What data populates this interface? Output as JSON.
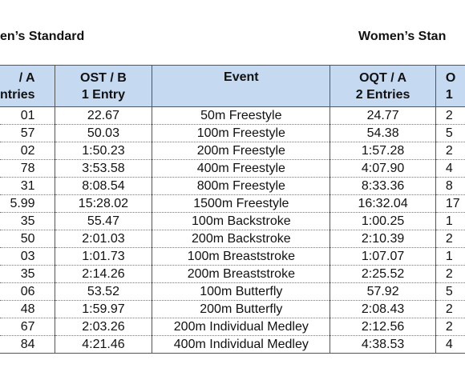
{
  "headings": {
    "left": "en’s Standard",
    "right": "Women’s Stan"
  },
  "columns": [
    {
      "line1": "/ A",
      "line2": "ntries"
    },
    {
      "line1": "OST / B",
      "line2": "1 Entry"
    },
    {
      "line1": "Event",
      "line2": ""
    },
    {
      "line1": "OQT / A",
      "line2": "2 Entries"
    },
    {
      "line1": "O",
      "line2": "1"
    }
  ],
  "rows": [
    {
      "a": "01",
      "b": "22.67",
      "event": "50m Freestyle",
      "c": "24.77",
      "d": "2"
    },
    {
      "a": "57",
      "b": "50.03",
      "event": "100m Freestyle",
      "c": "54.38",
      "d": "5"
    },
    {
      "a": "02",
      "b": "1:50.23",
      "event": "200m Freestyle",
      "c": "1:57.28",
      "d": "2"
    },
    {
      "a": "78",
      "b": "3:53.58",
      "event": "400m Freestyle",
      "c": "4:07.90",
      "d": "4"
    },
    {
      "a": "31",
      "b": "8:08.54",
      "event": "800m Freestyle",
      "c": "8:33.36",
      "d": "8"
    },
    {
      "a": "5.99",
      "b": "15:28.02",
      "event": "1500m Freestyle",
      "c": "16:32.04",
      "d": "17"
    },
    {
      "a": "35",
      "b": "55.47",
      "event": "100m Backstroke",
      "c": "1:00.25",
      "d": "1"
    },
    {
      "a": "50",
      "b": "2:01.03",
      "event": "200m Backstroke",
      "c": "2:10.39",
      "d": "2"
    },
    {
      "a": "03",
      "b": "1:01.73",
      "event": "100m Breaststroke",
      "c": "1:07.07",
      "d": "1"
    },
    {
      "a": "35",
      "b": "2:14.26",
      "event": "200m Breaststroke",
      "c": "2:25.52",
      "d": "2"
    },
    {
      "a": "06",
      "b": "53.52",
      "event": "100m Butterfly",
      "c": "57.92",
      "d": "5"
    },
    {
      "a": "48",
      "b": "1:59.97",
      "event": "200m Butterfly",
      "c": "2:08.43",
      "d": "2"
    },
    {
      "a": "67",
      "b": "2:03.26",
      "event": "200m Individual Medley",
      "c": "2:12.56",
      "d": "2"
    },
    {
      "a": "84",
      "b": "4:21.46",
      "event": "400m Individual Medley",
      "c": "4:38.53",
      "d": "4"
    }
  ]
}
